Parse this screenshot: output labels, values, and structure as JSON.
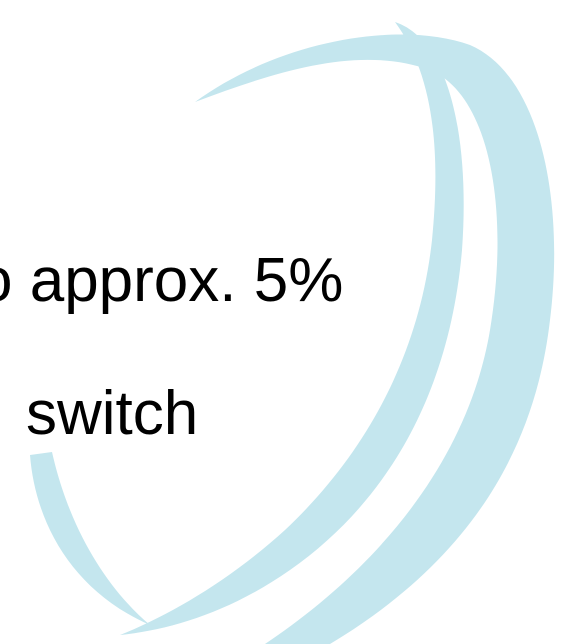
{
  "text": {
    "line1": "o approx. 5%",
    "line2": "switch"
  }
}
